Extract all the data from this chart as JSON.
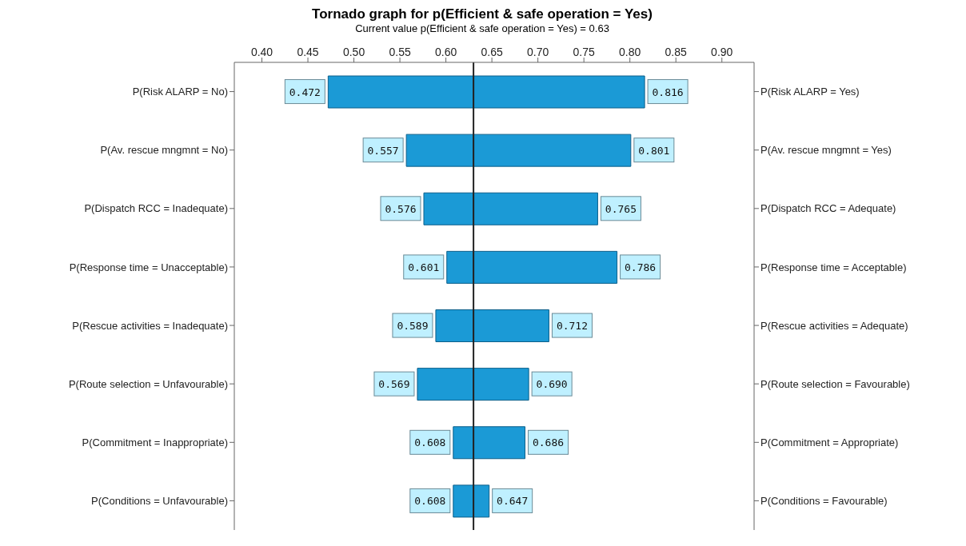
{
  "chart_data": {
    "type": "bar",
    "orientation": "horizontal",
    "title": "Tornado graph for p(Efficient & safe operation = Yes)",
    "subtitle": "Current value p(Efficient & safe operation = Yes) = 0.63",
    "categories": [
      "P(Risk ALARP = No)",
      "P(Av. rescue mngmnt = No)",
      "P(Dispatch RCC = Inadequate)",
      "P(Response time = Unacceptable)",
      "P(Rescue activities = Inadequate)",
      "P(Route selection = Unfavourable)",
      "P(Commitment = Inappropriate)",
      "P(Conditions = Unfavourable)"
    ],
    "y2_categories": [
      "P(Risk ALARP = Yes)",
      "P(Av. rescue mngmnt = Yes)",
      "P(Dispatch RCC = Adequate)",
      "P(Response time = Acceptable)",
      "P(Rescue activities = Adequate)",
      "P(Route selection = Favourable)",
      "P(Commitment = Appropriate)",
      "P(Conditions = Favourable)"
    ],
    "series": [
      {
        "color": "#1b9ad6",
        "base": [
          0.472,
          0.557,
          0.576,
          0.601,
          0.589,
          0.569,
          0.608,
          0.608
        ],
        "values": [
          0.158,
          0.073,
          0.054,
          0.029,
          0.041,
          0.061,
          0.022,
          0.022
        ]
      },
      {
        "color": "#1b9ad6",
        "base": [
          0.63,
          0.63,
          0.63,
          0.63,
          0.63,
          0.63,
          0.63,
          0.63
        ],
        "values": [
          0.186,
          0.171,
          0.135,
          0.156,
          0.082,
          0.06,
          0.056,
          0.017
        ]
      }
    ],
    "annotations": [
      {
        "text": "0.472",
        "x": 0.472,
        "y": "P(Risk ALARP = No)"
      },
      {
        "text": "0.816",
        "x": 0.816,
        "y": "P(Risk ALARP = No)"
      },
      {
        "text": "0.557",
        "x": 0.557,
        "y": "P(Av. rescue mngmnt = No)"
      },
      {
        "text": "0.801",
        "x": 0.801,
        "y": "P(Av. rescue mngmnt = No)"
      },
      {
        "text": "0.576",
        "x": 0.576,
        "y": "P(Dispatch RCC = Inadequate)"
      },
      {
        "text": "0.765",
        "x": 0.765,
        "y": "P(Dispatch RCC = Inadequate)"
      },
      {
        "text": "0.601",
        "x": 0.601,
        "y": "P(Response time = Unacceptable)"
      },
      {
        "text": "0.786",
        "x": 0.786,
        "y": "P(Response time = Unacceptable)"
      },
      {
        "text": "0.589",
        "x": 0.589,
        "y": "P(Rescue activities = Inadequate)"
      },
      {
        "text": "0.712",
        "x": 0.712,
        "y": "P(Rescue activities = Inadequate)"
      },
      {
        "text": "0.569",
        "x": 0.569,
        "y": "P(Route selection = Unfavourable)"
      },
      {
        "text": "0.690",
        "x": 0.69,
        "y": "P(Route selection = Unfavourable)"
      },
      {
        "text": "0.608",
        "x": 0.608,
        "y": "P(Commitment = Inappropriate)"
      },
      {
        "text": "0.686",
        "x": 0.686,
        "y": "P(Commitment = Inappropriate)"
      },
      {
        "text": "0.608",
        "x": 0.608,
        "y": "P(Conditions = Unfavourable)"
      },
      {
        "text": "0.647",
        "x": 0.647,
        "y": "P(Conditions = Unfavourable)"
      }
    ],
    "xlim": [
      0.37,
      0.935
    ],
    "xticks": [
      {
        "value": 0.4,
        "label": "0.40"
      },
      0.45,
      {
        "value": 0.5,
        "label": "0.50"
      },
      0.55,
      {
        "value": 0.6,
        "label": "0.60"
      },
      0.65,
      {
        "value": 0.7,
        "label": "0.70"
      },
      0.75,
      {
        "value": 0.8,
        "label": "0.80"
      },
      0.85,
      {
        "value": 0.9,
        "label": "0.90"
      }
    ],
    "ref_lines": [
      {
        "axis": "x",
        "value": 0.63,
        "color": "#222222"
      }
    ],
    "grid": false,
    "legend": false
  }
}
